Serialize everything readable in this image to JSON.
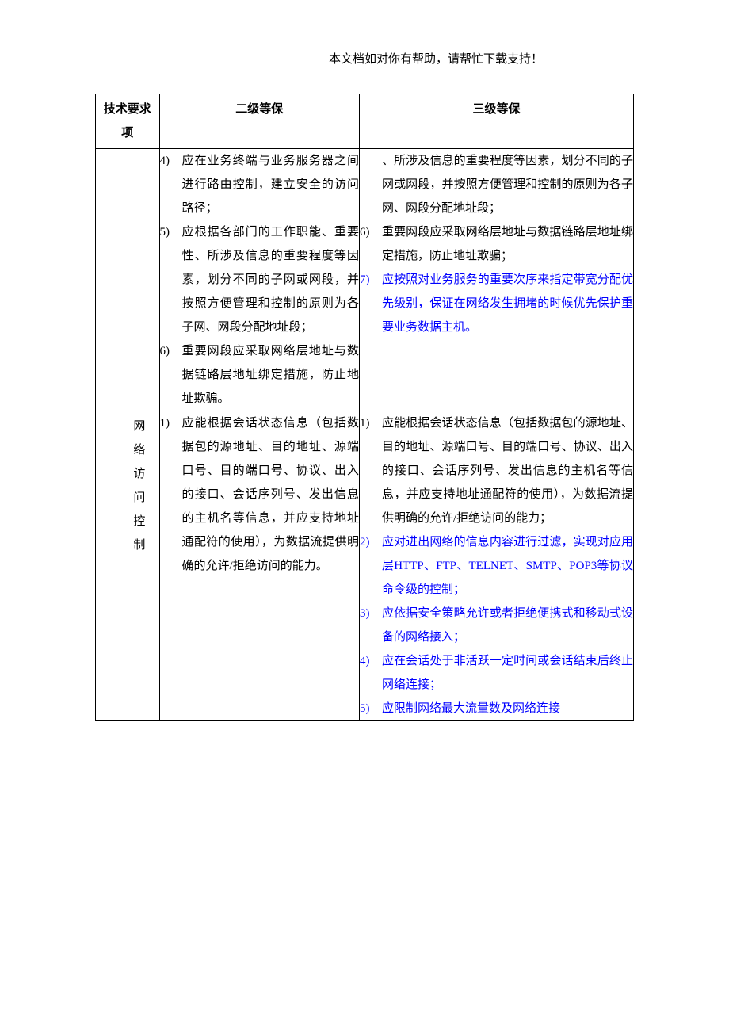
{
  "header_note": "本文档如对你有帮助，请帮忙下载支持！",
  "table": {
    "headers": {
      "tech_req_line1": "技术要求",
      "tech_req_line2": "项",
      "level2": "二级等保",
      "level3": "三级等保"
    },
    "rows": [
      {
        "subcat": "",
        "level2": [
          {
            "num": "4)",
            "text": "应在业务终端与业务服务器之间进行路由控制，建立安全的访问路径；",
            "color": "black"
          },
          {
            "num": "5)",
            "text": "应根据各部门的工作职能、重要性、所涉及信息的重要程度等因素，划分不同的子网或网段，并按照方便管理和控制的原则为各子网、网段分配地址段；",
            "color": "black"
          },
          {
            "num": "6)",
            "text": "重要网段应采取网络层地址与数据链路层地址绑定措施，防止地址欺骗。",
            "color": "black"
          }
        ],
        "level3_prefix": "、所涉及信息的重要程度等因素，划分不同的子网或网段，并按照方便管理和控制的原则为各子网、网段分配地址段；",
        "level3": [
          {
            "num": "6)",
            "text": "重要网段应采取网络层地址与数据链路层地址绑定措施，防止地址欺骗；",
            "color": "black"
          },
          {
            "num": "7)",
            "text": "应按照对业务服务的重要次序来指定带宽分配优先级别，保证在网络发生拥堵的时候优先保护重要业务数据主机。",
            "color": "blue"
          }
        ]
      },
      {
        "subcat": "网络访问控制",
        "level2": [
          {
            "num": "1)",
            "text": "应能根据会话状态信息（包括数据包的源地址、目的地址、源端口号、目的端口号、协议、出入的接口、会话序列号、发出信息的主机名等信息，并应支持地址通配符的使用），为数据流提供明确的允许/拒绝访问的能力。",
            "color": "black"
          }
        ],
        "level3": [
          {
            "num": "1)",
            "text": "应能根据会话状态信息（包括数据包的源地址、目的地址、源端口号、目的端口号、协议、出入的接口、会话序列号、发出信息的主机名等信息，并应支持地址通配符的使用），为数据流提供明确的允许/拒绝访问的能力；",
            "color": "black"
          },
          {
            "num": "2)",
            "text": "应对进出网络的信息内容进行过滤，实现对应用层HTTP、FTP、TELNET、SMTP、POP3等协议命令级的控制；",
            "color": "blue"
          },
          {
            "num": "3)",
            "text": "应依据安全策略允许或者拒绝便携式和移动式设备的网络接入；",
            "color": "blue"
          },
          {
            "num": "4)",
            "text": "应在会话处于非活跃一定时间或会话结束后终止网络连接；",
            "color": "blue"
          },
          {
            "num": "5)",
            "text": "应限制网络最大流量数及网络连接",
            "color": "blue"
          }
        ]
      }
    ]
  }
}
